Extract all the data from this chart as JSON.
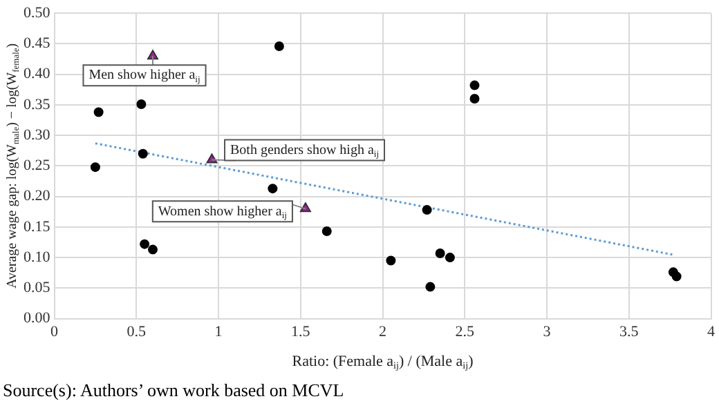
{
  "chart_data": {
    "type": "scatter",
    "xlabel": "Ratio: (Female a$_{ij}$) / (Male a$_{ij}$)",
    "ylabel": "Average wage gap: log(W$_{male}$) − log(W$_{female}$)",
    "xlim": [
      0,
      4
    ],
    "xticks": [
      0,
      0.5,
      1,
      1.5,
      2,
      2.5,
      3,
      3.5,
      4
    ],
    "ylim": [
      0,
      0.5
    ],
    "yticks": [
      {
        "value": 0,
        "label": "0.00"
      },
      {
        "value": 0.05,
        "label": "0.05"
      },
      {
        "value": 0.1,
        "label": "0.10"
      },
      {
        "value": 0.15,
        "label": "0.15"
      },
      {
        "value": 0.2,
        "label": "0.20"
      },
      {
        "value": 0.25,
        "label": "0.25"
      },
      {
        "value": 0.3,
        "label": "0.30"
      },
      {
        "value": 0.35,
        "label": "0.35"
      },
      {
        "value": 0.4,
        "label": "0.40"
      },
      {
        "value": 0.45,
        "label": "0.45"
      },
      {
        "value": 0.5,
        "label": "0.50"
      }
    ],
    "grid": true,
    "legend": false,
    "series": [
      {
        "color": "#000000",
        "marker": "circle",
        "x": [
          0.27,
          0.25,
          0.53,
          0.54,
          0.55,
          0.6,
          1.37,
          1.33,
          1.66,
          2.05,
          2.27,
          2.29,
          2.35,
          2.41,
          2.56,
          2.56,
          3.77,
          3.79
        ],
        "values": [
          0.338,
          0.248,
          0.351,
          0.27,
          0.122,
          0.113,
          0.446,
          0.213,
          0.143,
          0.095,
          0.178,
          0.052,
          0.107,
          0.1,
          0.382,
          0.36,
          0.076,
          0.069
        ]
      },
      {
        "color": "#a020a0",
        "marker": "triangle",
        "x": [
          0.6,
          0.96,
          1.53
        ],
        "values": [
          0.43,
          0.26,
          0.18
        ]
      },
      {
        "type": "line",
        "color": "#5b9bd5",
        "marker": "none",
        "line_style": "dotted",
        "x": [
          0.25,
          3.78
        ],
        "values": [
          0.287,
          0.104
        ]
      }
    ],
    "annotations": [
      {
        "text": "Men show higher a$_{ij}$",
        "x": 0.6,
        "y": 0.43
      },
      {
        "text": "Both genders show high a$_{ij}$",
        "x": 0.96,
        "y": 0.26
      },
      {
        "text": "Women show higher a$_{ij}$",
        "x": 1.53,
        "y": 0.18
      },
      "Source(s): Authors’ own work based on MCVL"
    ]
  }
}
